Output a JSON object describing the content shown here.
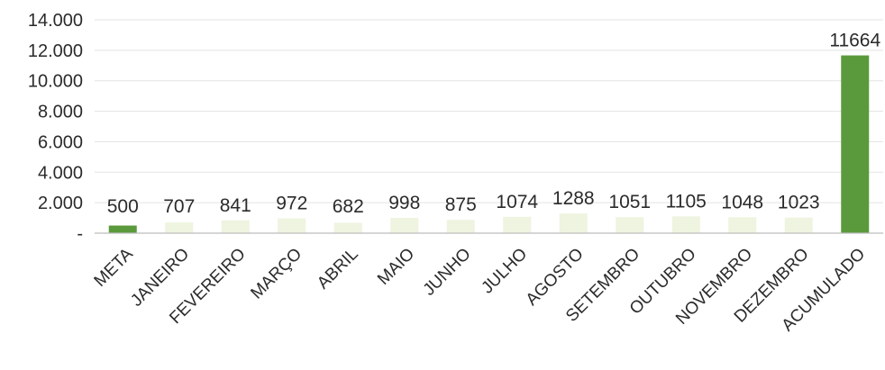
{
  "chart_data": {
    "type": "bar",
    "title": "",
    "xlabel": "",
    "ylabel": "",
    "ylim": [
      0,
      14000
    ],
    "yticks": [
      0,
      2000,
      4000,
      6000,
      8000,
      10000,
      12000,
      14000
    ],
    "ytick_labels": [
      "-",
      "2.000",
      "4.000",
      "6.000",
      "8.000",
      "10.000",
      "12.000",
      "14.000"
    ],
    "grid": true,
    "legend": "none",
    "categories": [
      "META",
      "JANEIRO",
      "FEVEREIRO",
      "MARÇO",
      "ABRIL",
      "MAIO",
      "JUNHO",
      "JULHO",
      "AGOSTO",
      "SETEMBRO",
      "OUTUBRO",
      "NOVEMBRO",
      "DEZEMBRO",
      "ACUMULADO"
    ],
    "values": [
      500,
      707,
      841,
      972,
      682,
      998,
      875,
      1074,
      1288,
      1051,
      1105,
      1048,
      1023,
      11664
    ],
    "data_labels": [
      "500",
      "707",
      "841",
      "972",
      "682",
      "998",
      "875",
      "1074",
      "1288",
      "1051",
      "1105",
      "1048",
      "1023",
      "11664"
    ],
    "bar_colors": [
      "#5b9a3c",
      "#eef4e0",
      "#eef4e0",
      "#eef4e0",
      "#eef4e0",
      "#eef4e0",
      "#eef4e0",
      "#eef4e0",
      "#eef4e0",
      "#eef4e0",
      "#eef4e0",
      "#eef4e0",
      "#eef4e0",
      "#5b9a3c"
    ]
  }
}
